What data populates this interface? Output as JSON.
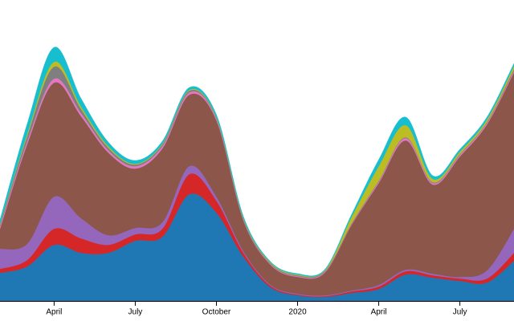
{
  "chart_data": {
    "type": "stacked_area",
    "x": [
      "2019-02",
      "2019-03",
      "2019-04",
      "2019-05",
      "2019-06",
      "2019-07",
      "2019-08",
      "2019-09",
      "2019-10",
      "2019-11",
      "2019-12",
      "2020-01",
      "2020-02",
      "2020-03",
      "2020-04",
      "2020-05",
      "2020-06",
      "2020-07",
      "2020-08",
      "2020-09"
    ],
    "xlim": [
      "2019-02",
      "2020-09"
    ],
    "xticks": [
      {
        "value": "2019-04",
        "label": "April"
      },
      {
        "value": "2019-07",
        "label": "July"
      },
      {
        "value": "2019-10",
        "label": "October"
      },
      {
        "value": "2020-01",
        "label": "2020"
      },
      {
        "value": "2020-04",
        "label": "April"
      },
      {
        "value": "2020-07",
        "label": "July"
      }
    ],
    "ylim": [
      0,
      340
    ],
    "series": [
      {
        "color": "#1f77b4",
        "values": [
          35,
          43,
          70,
          60,
          60,
          75,
          80,
          133,
          110,
          55,
          17,
          7,
          5,
          10,
          15,
          33,
          29,
          25,
          23,
          50
        ]
      },
      {
        "color": "#d62728",
        "values": [
          5,
          8,
          20,
          18,
          10,
          8,
          10,
          25,
          15,
          5,
          2,
          1,
          1,
          2,
          3,
          4,
          3,
          3,
          5,
          10
        ]
      },
      {
        "color": "#9467bd",
        "values": [
          25,
          20,
          40,
          25,
          12,
          8,
          8,
          10,
          5,
          2,
          1,
          1,
          1,
          1,
          2,
          2,
          2,
          2,
          10,
          30
        ]
      },
      {
        "color": "#8c564b",
        "values": [
          25,
          124,
          142,
          127,
          103,
          74,
          92,
          89,
          95,
          38,
          25,
          21,
          28,
          82,
          127,
          161,
          111,
          150,
          182,
          195
        ]
      },
      {
        "color": "#e377c2",
        "values": [
          3,
          4,
          5,
          4,
          3,
          3,
          3,
          3,
          2,
          1,
          1,
          1,
          1,
          1,
          2,
          3,
          2,
          2,
          2,
          2
        ]
      },
      {
        "color": "#7f7f7f",
        "values": [
          2,
          6,
          15,
          5,
          3,
          2,
          2,
          2,
          1,
          1,
          1,
          1,
          1,
          1,
          1,
          1,
          1,
          1,
          1,
          2
        ]
      },
      {
        "color": "#bcbd22",
        "values": [
          1,
          3,
          6,
          3,
          2,
          1,
          1,
          1,
          1,
          1,
          1,
          1,
          1,
          8,
          18,
          15,
          4,
          3,
          3,
          4
        ]
      },
      {
        "color": "#17becf",
        "values": [
          5,
          12,
          18,
          10,
          5,
          4,
          3,
          3,
          3,
          2,
          1,
          1,
          1,
          3,
          8,
          10,
          4,
          3,
          3,
          3
        ]
      }
    ]
  }
}
